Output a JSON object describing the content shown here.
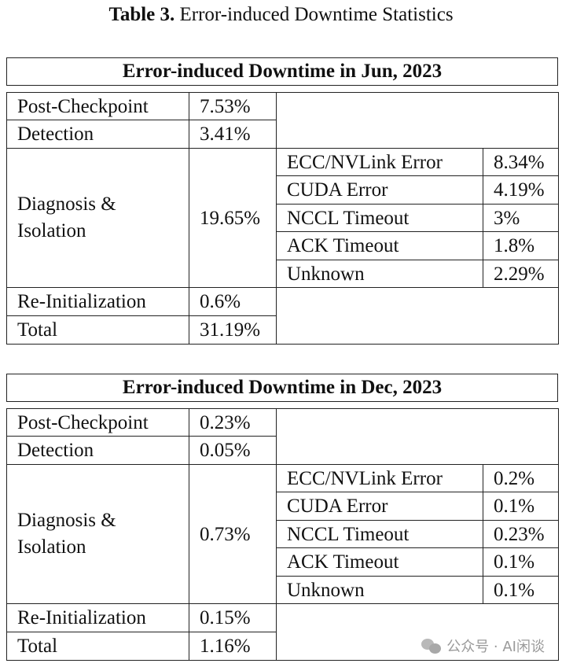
{
  "caption": {
    "label": "Table 3.",
    "text": "Error-induced Downtime Statistics"
  },
  "tables": [
    {
      "title": "Error-induced Downtime in Jun, 2023",
      "rows": {
        "post_checkpoint": {
          "label": "Post-Checkpoint",
          "value": "7.53%"
        },
        "detection": {
          "label": "Detection",
          "value": "3.41%"
        },
        "diagnosis": {
          "label": "Diagnosis & Isolation",
          "value": "19.65%"
        },
        "reinit": {
          "label": "Re-Initialization",
          "value": "0.6%"
        },
        "total": {
          "label": "Total",
          "value": "31.19%"
        }
      },
      "breakdown": [
        {
          "label": "ECC/NVLink Error",
          "value": "8.34%"
        },
        {
          "label": "CUDA Error",
          "value": "4.19%"
        },
        {
          "label": "NCCL Timeout",
          "value": "3%"
        },
        {
          "label": "ACK Timeout",
          "value": "1.8%"
        },
        {
          "label": "Unknown",
          "value": "2.29%"
        }
      ]
    },
    {
      "title": "Error-induced Downtime in Dec, 2023",
      "rows": {
        "post_checkpoint": {
          "label": "Post-Checkpoint",
          "value": "0.23%"
        },
        "detection": {
          "label": "Detection",
          "value": "0.05%"
        },
        "diagnosis": {
          "label": "Diagnosis & Isolation",
          "value": "0.73%"
        },
        "reinit": {
          "label": "Re-Initialization",
          "value": "0.15%"
        },
        "total": {
          "label": "Total",
          "value": "1.16%"
        }
      },
      "breakdown": [
        {
          "label": "ECC/NVLink Error",
          "value": "0.2%"
        },
        {
          "label": "CUDA Error",
          "value": "0.1%"
        },
        {
          "label": "NCCL Timeout",
          "value": "0.23%"
        },
        {
          "label": "ACK Timeout",
          "value": "0.1%"
        },
        {
          "label": "Unknown",
          "value": "0.1%"
        }
      ]
    }
  ],
  "watermark": {
    "text": "公众号 · AI闲谈",
    "icon": "wechat-icon"
  }
}
